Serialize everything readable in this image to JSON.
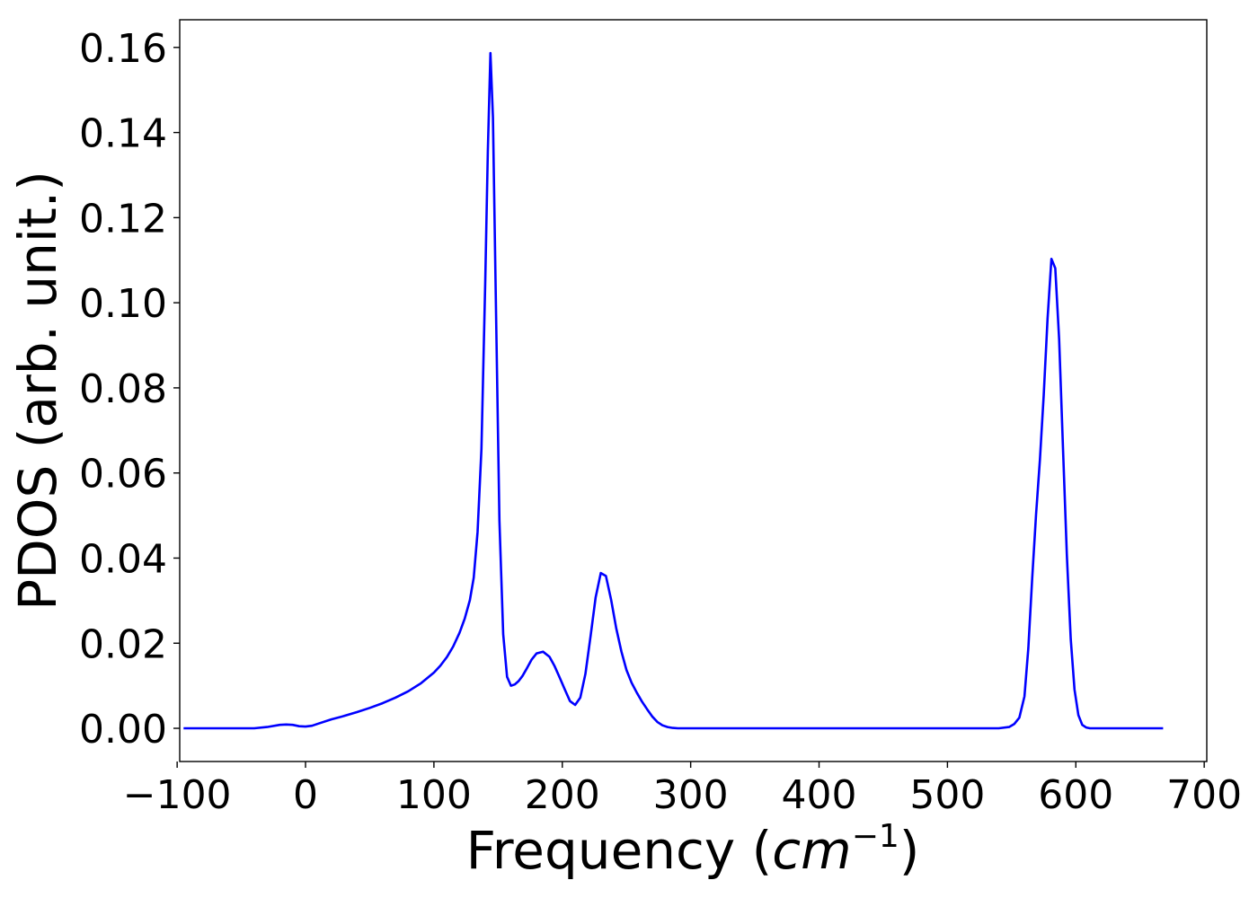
{
  "chart_data": {
    "type": "line",
    "title": "",
    "xlabel_main": "Frequency (",
    "xlabel_var": "cm",
    "xlabel_sup": "−1",
    "xlabel_close": ")",
    "ylabel": "PDOS (arb. unit.)",
    "xlim": [
      -98,
      702
    ],
    "ylim": [
      -0.0078,
      0.1665
    ],
    "xticks": [
      -100,
      0,
      100,
      200,
      300,
      400,
      500,
      600,
      700
    ],
    "xtick_labels": [
      "−100",
      "0",
      "100",
      "200",
      "300",
      "400",
      "500",
      "600",
      "700"
    ],
    "yticks": [
      0.0,
      0.02,
      0.04,
      0.06,
      0.08,
      0.1,
      0.12,
      0.14,
      0.16
    ],
    "ytick_labels": [
      "0.00",
      "0.02",
      "0.04",
      "0.06",
      "0.08",
      "0.10",
      "0.12",
      "0.14",
      "0.16"
    ],
    "grid": false,
    "line_color": "#0000ff",
    "series": [
      {
        "x": [
          -95,
          -80,
          -60,
          -40,
          -30,
          -20,
          -15,
          -10,
          -5,
          0,
          5,
          10,
          20,
          30,
          40,
          50,
          60,
          70,
          80,
          90,
          100,
          105,
          110,
          115,
          120,
          124,
          128,
          131,
          134,
          137,
          140,
          142,
          144,
          146,
          148,
          151,
          154,
          157,
          160,
          163,
          166,
          169,
          172,
          176,
          180,
          185,
          190,
          194,
          198,
          202,
          206,
          210,
          214,
          218,
          222,
          226,
          230,
          234,
          238,
          242,
          246,
          250,
          254,
          258,
          262,
          266,
          270,
          274,
          278,
          282,
          286,
          290,
          300,
          320,
          400,
          500,
          540,
          548,
          552,
          556,
          560,
          563,
          566,
          569,
          572,
          575,
          578,
          581,
          584,
          587,
          590,
          593,
          596,
          599,
          602,
          605,
          608,
          611,
          614,
          617,
          620,
          625,
          630,
          650,
          668
        ],
        "y": [
          0.0,
          0.0,
          0.0,
          0.0,
          0.0003,
          0.0008,
          0.0009,
          0.0008,
          0.0005,
          0.0004,
          0.0006,
          0.0011,
          0.0021,
          0.0029,
          0.0038,
          0.0048,
          0.0059,
          0.0072,
          0.0087,
          0.0106,
          0.0131,
          0.0147,
          0.0167,
          0.0192,
          0.0225,
          0.0258,
          0.0301,
          0.0354,
          0.0462,
          0.0657,
          0.1048,
          0.1356,
          0.1587,
          0.1435,
          0.1047,
          0.0488,
          0.0221,
          0.0121,
          0.01,
          0.0103,
          0.0111,
          0.0123,
          0.0139,
          0.0161,
          0.0176,
          0.018,
          0.0168,
          0.0146,
          0.0119,
          0.0091,
          0.0064,
          0.0055,
          0.0072,
          0.0128,
          0.0216,
          0.0308,
          0.0365,
          0.0358,
          0.0302,
          0.0235,
          0.0181,
          0.0137,
          0.0107,
          0.0084,
          0.0063,
          0.0045,
          0.0028,
          0.0015,
          0.0007,
          0.0003,
          0.0001,
          0.0,
          0.0,
          0.0,
          0.0,
          0.0,
          0.0,
          0.0003,
          0.001,
          0.0025,
          0.0075,
          0.0188,
          0.0352,
          0.0502,
          0.0631,
          0.0782,
          0.0962,
          0.1103,
          0.1081,
          0.0914,
          0.0657,
          0.0406,
          0.021,
          0.0091,
          0.0031,
          0.0008,
          0.0002,
          0.0,
          0.0,
          0.0,
          0.0,
          0.0,
          0.0,
          0.0,
          0.0
        ]
      }
    ]
  }
}
